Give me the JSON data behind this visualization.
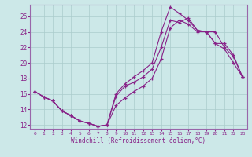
{
  "xlabel": "Windchill (Refroidissement éolien,°C)",
  "bg_color": "#cce8e8",
  "grid_color": "#aacccc",
  "line_color": "#882288",
  "xlim": [
    -0.5,
    23.5
  ],
  "ylim": [
    11.5,
    27.5
  ],
  "yticks": [
    12,
    14,
    16,
    18,
    20,
    22,
    24,
    26
  ],
  "xticks": [
    0,
    1,
    2,
    3,
    4,
    5,
    6,
    7,
    8,
    9,
    10,
    11,
    12,
    13,
    14,
    15,
    16,
    17,
    18,
    19,
    20,
    21,
    22,
    23
  ],
  "series1_x": [
    0,
    1,
    2,
    3,
    4,
    5,
    6,
    7,
    8,
    9,
    10,
    11,
    12,
    13,
    14,
    15,
    16,
    17,
    18,
    19,
    20,
    21,
    22,
    23
  ],
  "series1_y": [
    16.3,
    15.6,
    15.1,
    13.8,
    13.2,
    12.5,
    12.2,
    11.8,
    12.0,
    15.7,
    17.0,
    17.5,
    18.2,
    19.2,
    22.0,
    25.5,
    25.2,
    25.8,
    24.2,
    24.0,
    22.5,
    21.8,
    20.0,
    18.2
  ],
  "series2_x": [
    0,
    1,
    2,
    3,
    4,
    5,
    6,
    7,
    8,
    9,
    10,
    11,
    12,
    13,
    14,
    15,
    16,
    17,
    18,
    19,
    20,
    21,
    22,
    23
  ],
  "series2_y": [
    16.3,
    15.6,
    15.1,
    13.8,
    13.2,
    12.5,
    12.2,
    11.8,
    12.0,
    16.0,
    17.3,
    18.2,
    19.0,
    20.0,
    24.0,
    27.2,
    26.4,
    25.5,
    24.2,
    24.0,
    22.5,
    22.5,
    21.0,
    18.2
  ],
  "series3_x": [
    0,
    1,
    2,
    3,
    4,
    5,
    6,
    7,
    8,
    9,
    10,
    11,
    12,
    13,
    14,
    15,
    16,
    17,
    18,
    19,
    20,
    21,
    22,
    23
  ],
  "series3_y": [
    16.3,
    15.6,
    15.1,
    13.8,
    13.2,
    12.5,
    12.2,
    11.8,
    12.0,
    14.5,
    15.5,
    16.3,
    17.0,
    18.0,
    20.5,
    24.5,
    25.5,
    25.0,
    24.0,
    24.0,
    24.0,
    22.0,
    20.8,
    18.2
  ]
}
